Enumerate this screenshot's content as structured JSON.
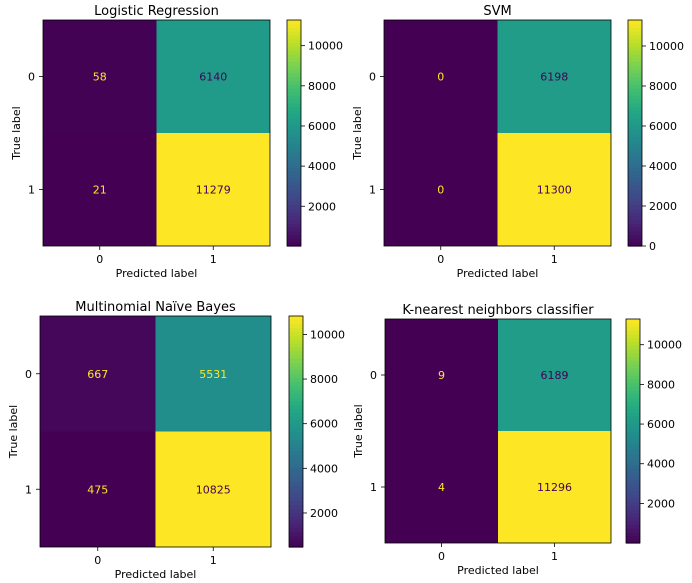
{
  "chart_data": [
    {
      "type": "heatmap",
      "title": "Logistic Regression",
      "xlabel": "Predicted label",
      "ylabel": "True label",
      "x_categories": [
        "0",
        "1"
      ],
      "y_categories": [
        "0",
        "1"
      ],
      "matrix": [
        [
          58,
          6140
        ],
        [
          21,
          11279
        ]
      ],
      "colorbar": {
        "min": 21,
        "max": 11279,
        "ticks": [
          2000,
          4000,
          6000,
          8000,
          10000
        ]
      },
      "grid": false
    },
    {
      "type": "heatmap",
      "title": "SVM",
      "xlabel": "Predicted label",
      "ylabel": "True label",
      "x_categories": [
        "0",
        "1"
      ],
      "y_categories": [
        "0",
        "1"
      ],
      "matrix": [
        [
          0,
          6198
        ],
        [
          0,
          11300
        ]
      ],
      "colorbar": {
        "min": 0,
        "max": 11300,
        "ticks": [
          0,
          2000,
          4000,
          6000,
          8000,
          10000
        ]
      },
      "grid": false
    },
    {
      "type": "heatmap",
      "title": "Multinomial Naïve Bayes",
      "xlabel": "Predicted label",
      "ylabel": "True label",
      "x_categories": [
        "0",
        "1"
      ],
      "y_categories": [
        "0",
        "1"
      ],
      "matrix": [
        [
          667,
          5531
        ],
        [
          475,
          10825
        ]
      ],
      "colorbar": {
        "min": 475,
        "max": 10825,
        "ticks": [
          2000,
          4000,
          6000,
          8000,
          10000
        ]
      },
      "grid": false
    },
    {
      "type": "heatmap",
      "title": "K-nearest neighbors classifier",
      "xlabel": "Predicted label",
      "ylabel": "True label",
      "x_categories": [
        "0",
        "1"
      ],
      "y_categories": [
        "0",
        "1"
      ],
      "matrix": [
        [
          9,
          6189
        ],
        [
          4,
          11296
        ]
      ],
      "colorbar": {
        "min": 4,
        "max": 11296,
        "ticks": [
          2000,
          4000,
          6000,
          8000,
          10000
        ]
      },
      "grid": false
    }
  ],
  "colors": {
    "colormap": "viridis",
    "text_on_dark": "#fde725",
    "text_on_light": "#440154"
  }
}
